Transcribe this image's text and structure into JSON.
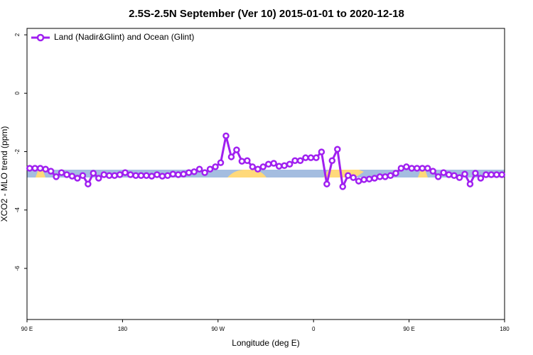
{
  "chart_data": {
    "type": "line",
    "title": "2.5S-2.5N September (Ver 10)   2015-01-01 to 2020-12-18",
    "x_label": "Longitude (deg E)",
    "y_label": "XCO2 - MLO trend (ppm)",
    "xlim": [
      90,
      540
    ],
    "ylim": [
      -7.75,
      2.22
    ],
    "xticks": [
      {
        "value": 90,
        "label": "90 E"
      },
      180,
      {
        "value": 270,
        "label": "90 W"
      },
      {
        "value": 360,
        "label": "0"
      },
      {
        "value": 450,
        "label": "90 E"
      },
      {
        "value": 540,
        "label": "180"
      }
    ],
    "yticks": [
      -6,
      -4,
      -2,
      0,
      2
    ],
    "legend_position": "top-left",
    "x": [
      92.5,
      97.5,
      102.5,
      107.5,
      112.5,
      117.5,
      122.5,
      127.5,
      132.5,
      137.5,
      142.5,
      147.5,
      152.5,
      157.5,
      162.5,
      167.5,
      172.5,
      177.5,
      182.5,
      187.5,
      192.5,
      197.5,
      202.5,
      207.5,
      212.5,
      217.5,
      222.5,
      227.5,
      232.5,
      237.5,
      242.5,
      247.5,
      252.5,
      257.5,
      262.5,
      267.5,
      272.5,
      277.5,
      282.5,
      287.5,
      292.5,
      297.5,
      302.5,
      307.5,
      312.5,
      317.5,
      322.5,
      327.5,
      332.5,
      337.5,
      342.5,
      347.5,
      352.5,
      357.5,
      362.5,
      367.5,
      372.5,
      377.5,
      382.5,
      387.5,
      392.5,
      397.5,
      402.5,
      407.5,
      412.5,
      417.5,
      422.5,
      427.5,
      432.5,
      437.5,
      442.5,
      447.5,
      452.5,
      457.5,
      462.5,
      467.5,
      472.5,
      477.5,
      482.5,
      487.5,
      492.5,
      497.5,
      502.5,
      507.5,
      512.5,
      517.5,
      522.5,
      527.5,
      532.5,
      537.5
    ],
    "series": [
      {
        "name": "Land (Nadir&Glint) and Ocean (Glint)",
        "color": "#a020f0",
        "values": [
          -2.57,
          -2.57,
          -2.57,
          -2.6,
          -2.67,
          -2.86,
          -2.72,
          -2.79,
          -2.84,
          -2.91,
          -2.82,
          -3.11,
          -2.74,
          -2.91,
          -2.79,
          -2.82,
          -2.82,
          -2.79,
          -2.72,
          -2.79,
          -2.82,
          -2.82,
          -2.82,
          -2.84,
          -2.79,
          -2.84,
          -2.82,
          -2.77,
          -2.79,
          -2.77,
          -2.72,
          -2.69,
          -2.6,
          -2.72,
          -2.6,
          -2.52,
          -2.38,
          -1.46,
          -2.18,
          -1.94,
          -2.33,
          -2.31,
          -2.52,
          -2.6,
          -2.52,
          -2.43,
          -2.4,
          -2.5,
          -2.48,
          -2.43,
          -2.31,
          -2.31,
          -2.21,
          -2.21,
          -2.21,
          -2.01,
          -3.11,
          -2.31,
          -1.92,
          -3.2,
          -2.82,
          -2.89,
          -3.01,
          -2.96,
          -2.94,
          -2.91,
          -2.86,
          -2.86,
          -2.82,
          -2.74,
          -2.57,
          -2.52,
          -2.57,
          -2.57,
          -2.57,
          -2.57,
          -2.67,
          -2.86,
          -2.72,
          -2.79,
          -2.82,
          -2.89,
          -2.77,
          -3.11,
          -2.74,
          -2.91,
          -2.79,
          -2.79,
          -2.79,
          -2.79
        ]
      }
    ]
  }
}
